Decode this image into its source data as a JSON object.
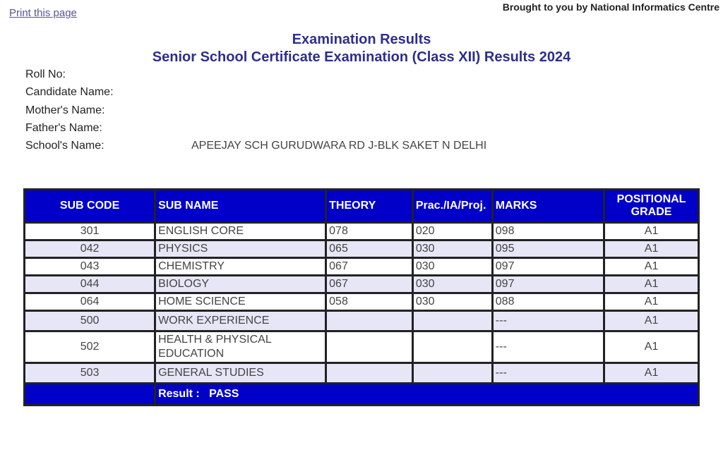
{
  "top": {
    "print_link": "Print this page",
    "credit": "Brought to you by National Informatics Centre"
  },
  "header": {
    "title": "Examination Results",
    "subtitle": "Senior School Certificate Examination (Class XII) Results 2024"
  },
  "candidate": [
    {
      "label": "Roll No:",
      "value": ""
    },
    {
      "label": "Candidate Name:",
      "value": ""
    },
    {
      "label": "Mother's Name:",
      "value": ""
    },
    {
      "label": "Father's Name:",
      "value": ""
    },
    {
      "label": "School's Name:",
      "value": "APEEJAY SCH GURUDWARA RD J-BLK SAKET N DELHI"
    }
  ],
  "table": {
    "headers": [
      "SUB CODE",
      "SUB NAME",
      "THEORY",
      "Prac./IA/Proj.",
      "MARKS",
      "POSITIONAL GRADE"
    ],
    "rows": [
      [
        "301",
        "ENGLISH CORE",
        "078",
        "020",
        "098",
        "A1"
      ],
      [
        "042",
        "PHYSICS",
        "065",
        "030",
        "095",
        "A1"
      ],
      [
        "043",
        "CHEMISTRY",
        "067",
        "030",
        "097",
        "A1"
      ],
      [
        "044",
        "BIOLOGY",
        "067",
        "030",
        "097",
        "A1"
      ],
      [
        "064",
        "HOME SCIENCE",
        "058",
        "030",
        "088",
        "A1"
      ],
      [
        "500",
        "WORK EXPERIENCE",
        "",
        "",
        "---",
        "A1"
      ],
      [
        "502",
        "HEALTH & PHYSICAL EDUCATION",
        "",
        "",
        "---",
        "A1"
      ],
      [
        "503",
        "GENERAL STUDIES",
        "",
        "",
        "---",
        "A1"
      ]
    ],
    "result": "Result :   PASS"
  },
  "colors": {
    "header_bg": "#0000c8",
    "alt_row": "#e6e6f7",
    "title": "#2e2e8a"
  }
}
